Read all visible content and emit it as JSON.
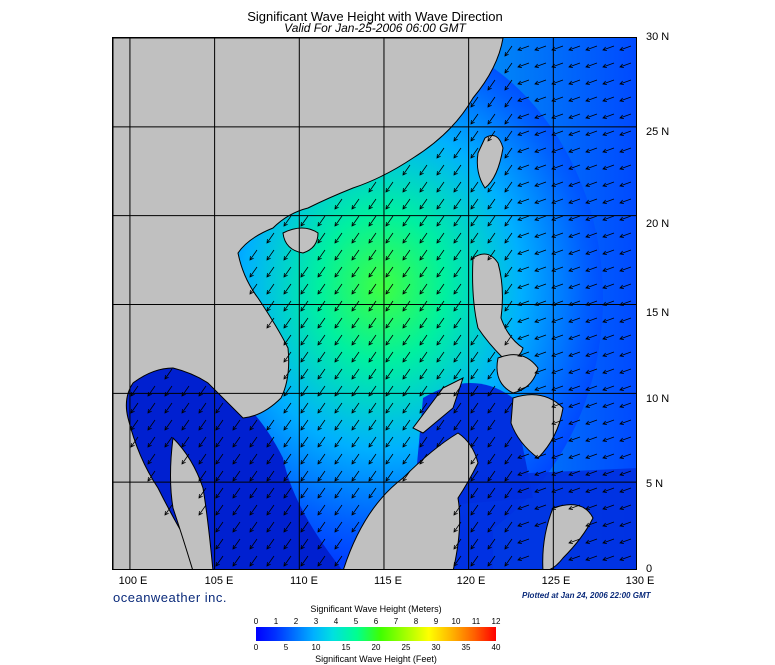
{
  "title": "Significant Wave Height with Wave Direction",
  "subtitle": "Valid For Jan-25-2006 06:00 GMT",
  "brand": "oceanweather inc.",
  "plotted": "Plotted at Jan 24, 2006 22:00 GMT",
  "map": {
    "lon_range": [
      99,
      130
    ],
    "lat_range": [
      0,
      30
    ],
    "lat_labels": [
      "30 N",
      "25 N",
      "20 N",
      "15 N",
      "10 N",
      "5 N",
      "0"
    ],
    "lon_labels": [
      "100 E",
      "105 E",
      "110 E",
      "115 E",
      "120 E",
      "125 E",
      "130 E"
    ],
    "land_color": "#c0c0c0",
    "grid": true
  },
  "colorbar": {
    "title_meters": "Significant Wave Height (Meters)",
    "title_feet": "Significant Wave Height (Feet)",
    "meters_ticks": [
      "0",
      "1",
      "2",
      "3",
      "4",
      "5",
      "6",
      "7",
      "8",
      "9",
      "10",
      "11",
      "12"
    ],
    "feet_ticks": [
      "0",
      "5",
      "10",
      "15",
      "20",
      "25",
      "30",
      "35",
      "40"
    ]
  }
}
